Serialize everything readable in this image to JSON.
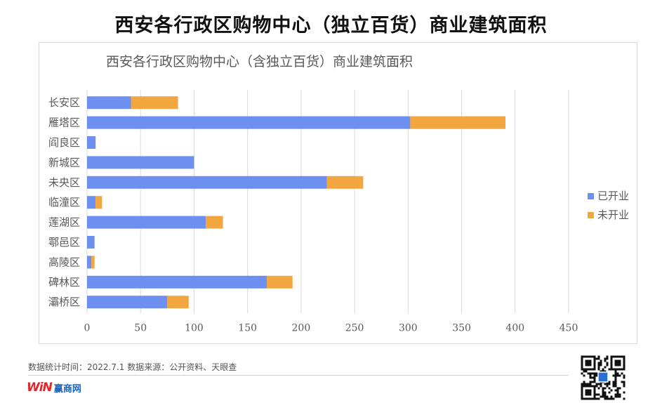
{
  "header": {
    "title": "西安各行政区购物中心（独立百货）商业建筑面积"
  },
  "chart_data": {
    "type": "bar",
    "orientation": "horizontal",
    "stacked": true,
    "title": "西安各行政区购物中心（含独立百货）商业建筑面积",
    "categories": [
      "长安区",
      "雁塔区",
      "阎良区",
      "新城区",
      "未央区",
      "临潼区",
      "莲湖区",
      "鄠邑区",
      "高陵区",
      "碑林区",
      "灞桥区"
    ],
    "series": [
      {
        "name": "已开业",
        "color": "#6d8ff0",
        "values": [
          41,
          302,
          8,
          100,
          224,
          8,
          111,
          7,
          4,
          168,
          75
        ]
      },
      {
        "name": "未开业",
        "color": "#f2a640",
        "values": [
          44,
          89,
          0,
          0,
          34,
          6,
          16,
          0,
          3,
          24,
          20
        ]
      }
    ],
    "xlim": [
      0,
      450
    ],
    "xticks": [
      0,
      50,
      100,
      150,
      200,
      250,
      300,
      350,
      400,
      450
    ],
    "grid": true,
    "legend": "right"
  },
  "footer": {
    "note": "数据统计时间：2022.7.1  数据来源：公开资料、天眼查",
    "logo_mark": "WiN",
    "logo_text": "赢商网"
  },
  "icons": {
    "qr": "qr-code-icon"
  }
}
